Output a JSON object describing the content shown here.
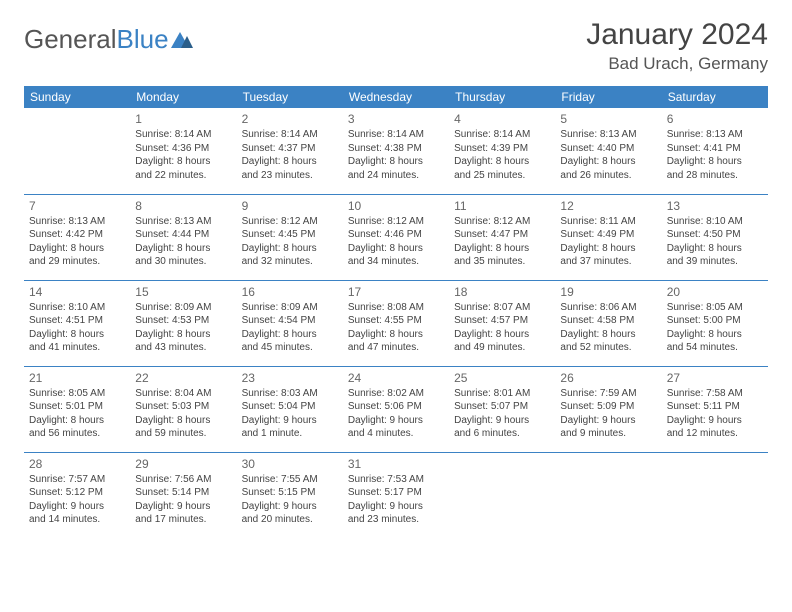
{
  "logo": {
    "part1": "General",
    "part2": "Blue"
  },
  "header": {
    "month": "January 2024",
    "location": "Bad Urach, Germany"
  },
  "colors": {
    "brand": "#3b82c4",
    "text": "#444",
    "bg": "#ffffff"
  },
  "weekdays": [
    "Sunday",
    "Monday",
    "Tuesday",
    "Wednesday",
    "Thursday",
    "Friday",
    "Saturday"
  ],
  "weeks": [
    [
      null,
      {
        "n": "1",
        "sr": "Sunrise: 8:14 AM",
        "ss": "Sunset: 4:36 PM",
        "d1": "Daylight: 8 hours",
        "d2": "and 22 minutes."
      },
      {
        "n": "2",
        "sr": "Sunrise: 8:14 AM",
        "ss": "Sunset: 4:37 PM",
        "d1": "Daylight: 8 hours",
        "d2": "and 23 minutes."
      },
      {
        "n": "3",
        "sr": "Sunrise: 8:14 AM",
        "ss": "Sunset: 4:38 PM",
        "d1": "Daylight: 8 hours",
        "d2": "and 24 minutes."
      },
      {
        "n": "4",
        "sr": "Sunrise: 8:14 AM",
        "ss": "Sunset: 4:39 PM",
        "d1": "Daylight: 8 hours",
        "d2": "and 25 minutes."
      },
      {
        "n": "5",
        "sr": "Sunrise: 8:13 AM",
        "ss": "Sunset: 4:40 PM",
        "d1": "Daylight: 8 hours",
        "d2": "and 26 minutes."
      },
      {
        "n": "6",
        "sr": "Sunrise: 8:13 AM",
        "ss": "Sunset: 4:41 PM",
        "d1": "Daylight: 8 hours",
        "d2": "and 28 minutes."
      }
    ],
    [
      {
        "n": "7",
        "sr": "Sunrise: 8:13 AM",
        "ss": "Sunset: 4:42 PM",
        "d1": "Daylight: 8 hours",
        "d2": "and 29 minutes."
      },
      {
        "n": "8",
        "sr": "Sunrise: 8:13 AM",
        "ss": "Sunset: 4:44 PM",
        "d1": "Daylight: 8 hours",
        "d2": "and 30 minutes."
      },
      {
        "n": "9",
        "sr": "Sunrise: 8:12 AM",
        "ss": "Sunset: 4:45 PM",
        "d1": "Daylight: 8 hours",
        "d2": "and 32 minutes."
      },
      {
        "n": "10",
        "sr": "Sunrise: 8:12 AM",
        "ss": "Sunset: 4:46 PM",
        "d1": "Daylight: 8 hours",
        "d2": "and 34 minutes."
      },
      {
        "n": "11",
        "sr": "Sunrise: 8:12 AM",
        "ss": "Sunset: 4:47 PM",
        "d1": "Daylight: 8 hours",
        "d2": "and 35 minutes."
      },
      {
        "n": "12",
        "sr": "Sunrise: 8:11 AM",
        "ss": "Sunset: 4:49 PM",
        "d1": "Daylight: 8 hours",
        "d2": "and 37 minutes."
      },
      {
        "n": "13",
        "sr": "Sunrise: 8:10 AM",
        "ss": "Sunset: 4:50 PM",
        "d1": "Daylight: 8 hours",
        "d2": "and 39 minutes."
      }
    ],
    [
      {
        "n": "14",
        "sr": "Sunrise: 8:10 AM",
        "ss": "Sunset: 4:51 PM",
        "d1": "Daylight: 8 hours",
        "d2": "and 41 minutes."
      },
      {
        "n": "15",
        "sr": "Sunrise: 8:09 AM",
        "ss": "Sunset: 4:53 PM",
        "d1": "Daylight: 8 hours",
        "d2": "and 43 minutes."
      },
      {
        "n": "16",
        "sr": "Sunrise: 8:09 AM",
        "ss": "Sunset: 4:54 PM",
        "d1": "Daylight: 8 hours",
        "d2": "and 45 minutes."
      },
      {
        "n": "17",
        "sr": "Sunrise: 8:08 AM",
        "ss": "Sunset: 4:55 PM",
        "d1": "Daylight: 8 hours",
        "d2": "and 47 minutes."
      },
      {
        "n": "18",
        "sr": "Sunrise: 8:07 AM",
        "ss": "Sunset: 4:57 PM",
        "d1": "Daylight: 8 hours",
        "d2": "and 49 minutes."
      },
      {
        "n": "19",
        "sr": "Sunrise: 8:06 AM",
        "ss": "Sunset: 4:58 PM",
        "d1": "Daylight: 8 hours",
        "d2": "and 52 minutes."
      },
      {
        "n": "20",
        "sr": "Sunrise: 8:05 AM",
        "ss": "Sunset: 5:00 PM",
        "d1": "Daylight: 8 hours",
        "d2": "and 54 minutes."
      }
    ],
    [
      {
        "n": "21",
        "sr": "Sunrise: 8:05 AM",
        "ss": "Sunset: 5:01 PM",
        "d1": "Daylight: 8 hours",
        "d2": "and 56 minutes."
      },
      {
        "n": "22",
        "sr": "Sunrise: 8:04 AM",
        "ss": "Sunset: 5:03 PM",
        "d1": "Daylight: 8 hours",
        "d2": "and 59 minutes."
      },
      {
        "n": "23",
        "sr": "Sunrise: 8:03 AM",
        "ss": "Sunset: 5:04 PM",
        "d1": "Daylight: 9 hours",
        "d2": "and 1 minute."
      },
      {
        "n": "24",
        "sr": "Sunrise: 8:02 AM",
        "ss": "Sunset: 5:06 PM",
        "d1": "Daylight: 9 hours",
        "d2": "and 4 minutes."
      },
      {
        "n": "25",
        "sr": "Sunrise: 8:01 AM",
        "ss": "Sunset: 5:07 PM",
        "d1": "Daylight: 9 hours",
        "d2": "and 6 minutes."
      },
      {
        "n": "26",
        "sr": "Sunrise: 7:59 AM",
        "ss": "Sunset: 5:09 PM",
        "d1": "Daylight: 9 hours",
        "d2": "and 9 minutes."
      },
      {
        "n": "27",
        "sr": "Sunrise: 7:58 AM",
        "ss": "Sunset: 5:11 PM",
        "d1": "Daylight: 9 hours",
        "d2": "and 12 minutes."
      }
    ],
    [
      {
        "n": "28",
        "sr": "Sunrise: 7:57 AM",
        "ss": "Sunset: 5:12 PM",
        "d1": "Daylight: 9 hours",
        "d2": "and 14 minutes."
      },
      {
        "n": "29",
        "sr": "Sunrise: 7:56 AM",
        "ss": "Sunset: 5:14 PM",
        "d1": "Daylight: 9 hours",
        "d2": "and 17 minutes."
      },
      {
        "n": "30",
        "sr": "Sunrise: 7:55 AM",
        "ss": "Sunset: 5:15 PM",
        "d1": "Daylight: 9 hours",
        "d2": "and 20 minutes."
      },
      {
        "n": "31",
        "sr": "Sunrise: 7:53 AM",
        "ss": "Sunset: 5:17 PM",
        "d1": "Daylight: 9 hours",
        "d2": "and 23 minutes."
      },
      null,
      null,
      null
    ]
  ]
}
